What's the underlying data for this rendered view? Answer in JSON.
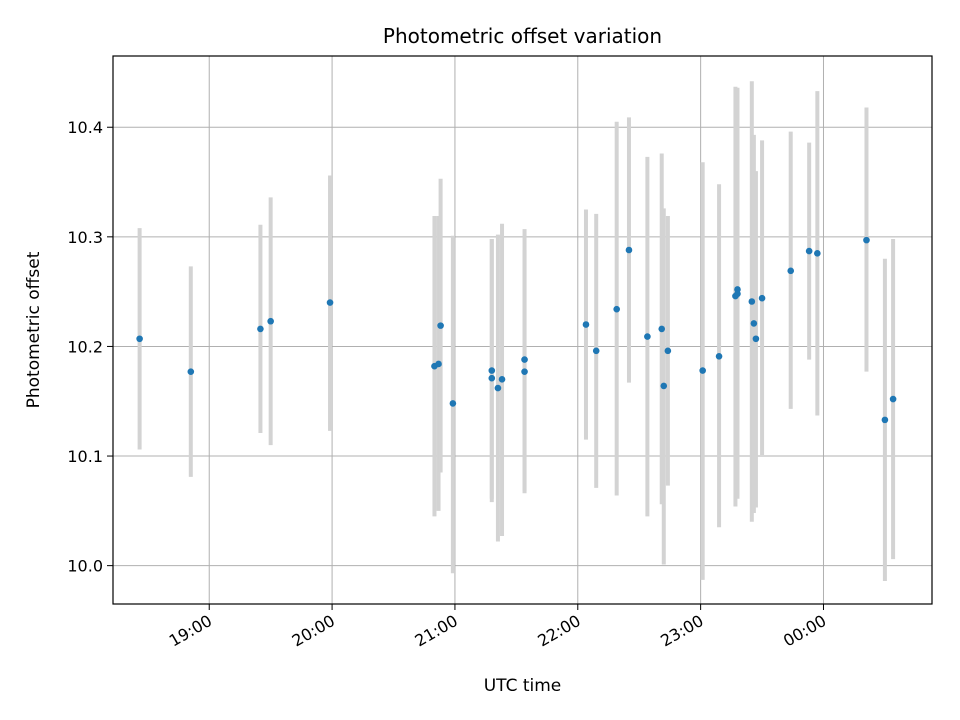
{
  "chart_data": {
    "type": "scatter",
    "title": "Photometric offset variation",
    "xlabel": "UTC time",
    "ylabel": "Photometric offset",
    "grid": true,
    "x_axis_type": "time",
    "x_range_utc": [
      "2000-01-01T18:13",
      "2000-01-02T00:53"
    ],
    "ylim": [
      9.965,
      10.465
    ],
    "x_ticks": [
      {
        "time": "2000-01-01T19:00",
        "label": "19:00"
      },
      {
        "time": "2000-01-01T20:00",
        "label": "20:00"
      },
      {
        "time": "2000-01-01T21:00",
        "label": "21:00"
      },
      {
        "time": "2000-01-01T22:00",
        "label": "22:00"
      },
      {
        "time": "2000-01-01T23:00",
        "label": "23:00"
      },
      {
        "time": "2000-01-02T00:00",
        "label": "00:00"
      }
    ],
    "y_ticks": [
      {
        "value": 10.0,
        "label": "10.0"
      },
      {
        "value": 10.1,
        "label": "10.1"
      },
      {
        "value": 10.2,
        "label": "10.2"
      },
      {
        "value": 10.3,
        "label": "10.3"
      },
      {
        "value": 10.4,
        "label": "10.4"
      }
    ],
    "marker_color": "#1f77b4",
    "errorbar_color": "#d3d3d3",
    "points": [
      {
        "time": "2000-01-01T18:26",
        "y": 10.207,
        "ylo": 10.106,
        "yhi": 10.308
      },
      {
        "time": "2000-01-01T18:51",
        "y": 10.177,
        "ylo": 10.081,
        "yhi": 10.273
      },
      {
        "time": "2000-01-01T19:25",
        "y": 10.216,
        "ylo": 10.121,
        "yhi": 10.311
      },
      {
        "time": "2000-01-01T19:30",
        "y": 10.223,
        "ylo": 10.11,
        "yhi": 10.336
      },
      {
        "time": "2000-01-01T19:59",
        "y": 10.24,
        "ylo": 10.123,
        "yhi": 10.356
      },
      {
        "time": "2000-01-01T20:50",
        "y": 10.182,
        "ylo": 10.045,
        "yhi": 10.319
      },
      {
        "time": "2000-01-01T20:52",
        "y": 10.184,
        "ylo": 10.05,
        "yhi": 10.319
      },
      {
        "time": "2000-01-01T20:53",
        "y": 10.219,
        "ylo": 10.085,
        "yhi": 10.353
      },
      {
        "time": "2000-01-01T20:59",
        "y": 10.148,
        "ylo": 9.993,
        "yhi": 10.301
      },
      {
        "time": "2000-01-01T21:18",
        "y": 10.178,
        "ylo": 10.058,
        "yhi": 10.298
      },
      {
        "time": "2000-01-01T21:18",
        "y": 10.171,
        "ylo": 10.061,
        "yhi": 10.298
      },
      {
        "time": "2000-01-01T21:21",
        "y": 10.162,
        "ylo": 10.022,
        "yhi": 10.302
      },
      {
        "time": "2000-01-01T21:23",
        "y": 10.17,
        "ylo": 10.027,
        "yhi": 10.312
      },
      {
        "time": "2000-01-01T21:34",
        "y": 10.177,
        "ylo": 10.066,
        "yhi": 10.288
      },
      {
        "time": "2000-01-01T21:34",
        "y": 10.188,
        "ylo": 10.068,
        "yhi": 10.307
      },
      {
        "time": "2000-01-01T22:04",
        "y": 10.22,
        "ylo": 10.115,
        "yhi": 10.325
      },
      {
        "time": "2000-01-01T22:09",
        "y": 10.196,
        "ylo": 10.071,
        "yhi": 10.321
      },
      {
        "time": "2000-01-01T22:19",
        "y": 10.234,
        "ylo": 10.064,
        "yhi": 10.405
      },
      {
        "time": "2000-01-01T22:25",
        "y": 10.288,
        "ylo": 10.167,
        "yhi": 10.409
      },
      {
        "time": "2000-01-01T22:34",
        "y": 10.209,
        "ylo": 10.045,
        "yhi": 10.373
      },
      {
        "time": "2000-01-01T22:41",
        "y": 10.216,
        "ylo": 10.056,
        "yhi": 10.376
      },
      {
        "time": "2000-01-01T22:42",
        "y": 10.164,
        "ylo": 10.001,
        "yhi": 10.326
      },
      {
        "time": "2000-01-01T22:44",
        "y": 10.196,
        "ylo": 10.073,
        "yhi": 10.319
      },
      {
        "time": "2000-01-01T23:01",
        "y": 10.178,
        "ylo": 9.987,
        "yhi": 10.368
      },
      {
        "time": "2000-01-01T23:09",
        "y": 10.191,
        "ylo": 10.035,
        "yhi": 10.348
      },
      {
        "time": "2000-01-01T23:17",
        "y": 10.246,
        "ylo": 10.054,
        "yhi": 10.437
      },
      {
        "time": "2000-01-01T23:18",
        "y": 10.252,
        "ylo": 10.064,
        "yhi": 10.436
      },
      {
        "time": "2000-01-01T23:18",
        "y": 10.248,
        "ylo": 10.061,
        "yhi": 10.434
      },
      {
        "time": "2000-01-01T23:25",
        "y": 10.241,
        "ylo": 10.04,
        "yhi": 10.442
      },
      {
        "time": "2000-01-01T23:26",
        "y": 10.221,
        "ylo": 10.048,
        "yhi": 10.393
      },
      {
        "time": "2000-01-01T23:27",
        "y": 10.207,
        "ylo": 10.053,
        "yhi": 10.36
      },
      {
        "time": "2000-01-01T23:30",
        "y": 10.244,
        "ylo": 10.101,
        "yhi": 10.388
      },
      {
        "time": "2000-01-01T23:44",
        "y": 10.269,
        "ylo": 10.143,
        "yhi": 10.396
      },
      {
        "time": "2000-01-01T23:53",
        "y": 10.287,
        "ylo": 10.188,
        "yhi": 10.386
      },
      {
        "time": "2000-01-01T23:57",
        "y": 10.285,
        "ylo": 10.137,
        "yhi": 10.433
      },
      {
        "time": "2000-01-02T00:21",
        "y": 10.297,
        "ylo": 10.177,
        "yhi": 10.418
      },
      {
        "time": "2000-01-02T00:30",
        "y": 10.133,
        "ylo": 9.986,
        "yhi": 10.28
      },
      {
        "time": "2000-01-02T00:34",
        "y": 10.152,
        "ylo": 10.006,
        "yhi": 10.298
      }
    ]
  }
}
